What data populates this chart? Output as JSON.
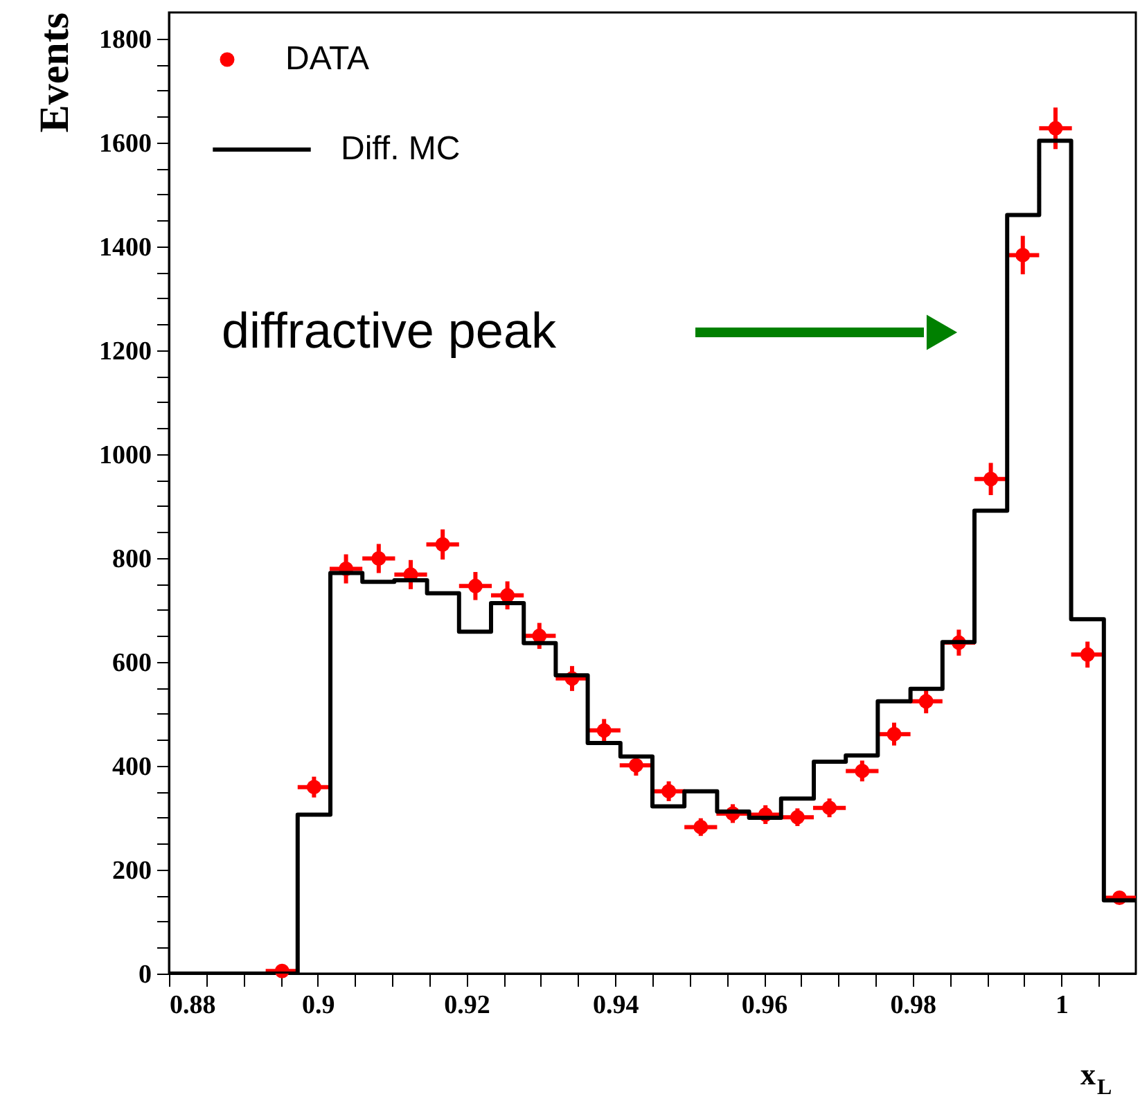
{
  "chart_data": {
    "type": "histogram",
    "xlabel": "x$_{L}$",
    "ylabel": "Events",
    "bins": [
      0.88,
      0.8843,
      0.8887,
      0.893,
      0.8973,
      0.9017,
      0.906,
      0.9103,
      0.9147,
      0.919,
      0.9233,
      0.9277,
      0.932,
      0.9363,
      0.9407,
      0.945,
      0.9493,
      0.9537,
      0.958,
      0.9623,
      0.9667,
      0.971,
      0.9753,
      0.9797,
      0.984,
      0.9883,
      0.9927,
      0.997,
      1.0013,
      1.0057,
      1.01
    ],
    "series": [
      {
        "name": "DATA",
        "type": "scatter",
        "color": "#ff0000",
        "marker": "circle",
        "x": [
          0.8952,
          0.8995,
          0.9038,
          0.9082,
          0.9125,
          0.9168,
          0.9212,
          0.9255,
          0.9298,
          0.9342,
          0.9385,
          0.9428,
          0.9472,
          0.9515,
          0.9558,
          0.9602,
          0.9645,
          0.9688,
          0.9732,
          0.9775,
          0.9818,
          0.9862,
          0.9905,
          0.9948,
          0.9992,
          1.0035,
          1.0078
        ],
        "values": [
          5,
          359,
          779,
          799,
          768,
          826,
          746,
          728,
          650,
          568,
          468,
          401,
          351,
          282,
          308,
          306,
          301,
          319,
          390,
          461,
          524,
          637,
          952,
          1383,
          1627,
          614,
          146
        ],
        "errors": [
          null,
          20,
          28,
          28,
          28,
          29,
          27,
          27,
          25,
          24,
          22,
          20,
          19,
          17,
          18,
          18,
          17,
          18,
          20,
          22,
          23,
          25,
          31,
          37,
          40,
          25,
          12
        ],
        "xerrors": [
          0.0022,
          0.0022,
          0.0022,
          0.0022,
          0.0022,
          0.0022,
          0.0022,
          0.0022,
          0.0022,
          0.0022,
          0.0022,
          0.0022,
          0.0022,
          0.0022,
          0.0022,
          0.0022,
          0.0022,
          0.0022,
          0.0022,
          0.0022,
          0.0022,
          0.0022,
          0.0022,
          0.0022,
          0.0022,
          0.0022,
          0.0022
        ]
      },
      {
        "name": "Diff. MC",
        "color": "#000000",
        "line_style": "solid",
        "values": [
          0,
          0,
          0,
          0,
          306,
          771,
          754,
          757,
          732,
          658,
          713,
          636,
          574,
          444,
          418,
          322,
          351,
          312,
          300,
          337,
          408,
          420,
          524,
          548,
          638,
          891,
          1460,
          1603,
          682,
          141
        ]
      }
    ],
    "annotations": [
      "diffractive peak"
    ],
    "xlim": [
      0.88,
      1.01
    ],
    "ylim": [
      0,
      1850
    ],
    "xticks": [
      0.88,
      {
        "value": 0.885,
        "label": null
      },
      {
        "value": 0.89,
        "label": null
      },
      {
        "value": 0.895,
        "label": null
      },
      0.9,
      {
        "value": 0.905,
        "label": null
      },
      {
        "value": 0.91,
        "label": null
      },
      {
        "value": 0.915,
        "label": null
      },
      0.92,
      {
        "value": 0.925,
        "label": null
      },
      {
        "value": 0.93,
        "label": null
      },
      {
        "value": 0.935,
        "label": null
      },
      0.94,
      {
        "value": 0.945,
        "label": null
      },
      {
        "value": 0.95,
        "label": null
      },
      {
        "value": 0.955,
        "label": null
      },
      0.96,
      {
        "value": 0.965,
        "label": null
      },
      {
        "value": 0.97,
        "label": null
      },
      {
        "value": 0.975,
        "label": null
      },
      0.98,
      {
        "value": 0.985,
        "label": null
      },
      {
        "value": 0.99,
        "label": null
      },
      {
        "value": 0.995,
        "label": null
      },
      1,
      {
        "value": 1.005,
        "label": null
      }
    ],
    "yticks": [
      0,
      {
        "value": 50,
        "label": null
      },
      {
        "value": 100,
        "label": null
      },
      {
        "value": 150,
        "label": null
      },
      200,
      {
        "value": 250,
        "label": null
      },
      {
        "value": 300,
        "label": null
      },
      {
        "value": 350,
        "label": null
      },
      400,
      {
        "value": 450,
        "label": null
      },
      {
        "value": 500,
        "label": null
      },
      {
        "value": 550,
        "label": null
      },
      600,
      {
        "value": 650,
        "label": null
      },
      {
        "value": 700,
        "label": null
      },
      {
        "value": 750,
        "label": null
      },
      800,
      {
        "value": 850,
        "label": null
      },
      {
        "value": 900,
        "label": null
      },
      {
        "value": 950,
        "label": null
      },
      1000,
      {
        "value": 1050,
        "label": null
      },
      {
        "value": 1100,
        "label": null
      },
      {
        "value": 1150,
        "label": null
      },
      1200,
      {
        "value": 1250,
        "label": null
      },
      {
        "value": 1300,
        "label": null
      },
      {
        "value": 1350,
        "label": null
      },
      1400,
      {
        "value": 1450,
        "label": null
      },
      {
        "value": 1500,
        "label": null
      },
      {
        "value": 1550,
        "label": null
      },
      1600,
      {
        "value": 1650,
        "label": null
      },
      {
        "value": 1700,
        "label": null
      },
      {
        "value": 1750,
        "label": null
      },
      1800
    ],
    "grid": false,
    "legend": "top left"
  }
}
